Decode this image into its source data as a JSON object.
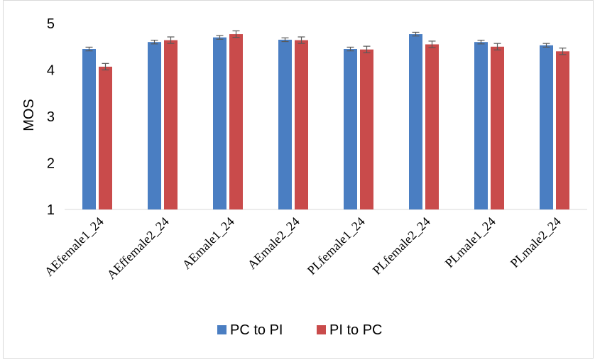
{
  "chart_data": {
    "type": "bar",
    "title": "",
    "xlabel": "",
    "ylabel": "MOS",
    "ylim": [
      1,
      5
    ],
    "yticks": [
      1,
      2,
      3,
      4,
      5
    ],
    "grid": false,
    "legend_position": "bottom",
    "error_bars": true,
    "categories": [
      "AEfemale1_24",
      "AEffemale2_24",
      "AEmale1_24",
      "AEmale2_24",
      "PLfemale1_24",
      "PLfemale2_24",
      "PLmale1_24",
      "PLmale2_24"
    ],
    "series": [
      {
        "name": "PC to PI",
        "color": "#4a7ec2",
        "values": [
          4.45,
          4.6,
          4.7,
          4.65,
          4.45,
          4.77,
          4.6,
          4.53
        ],
        "errors": [
          0.04,
          0.04,
          0.04,
          0.04,
          0.04,
          0.04,
          0.04,
          0.04
        ]
      },
      {
        "name": "PI to PC",
        "color": "#c94b4b",
        "values": [
          4.07,
          4.64,
          4.77,
          4.64,
          4.44,
          4.55,
          4.5,
          4.4
        ],
        "errors": [
          0.07,
          0.07,
          0.07,
          0.07,
          0.07,
          0.07,
          0.07,
          0.07
        ]
      }
    ]
  }
}
